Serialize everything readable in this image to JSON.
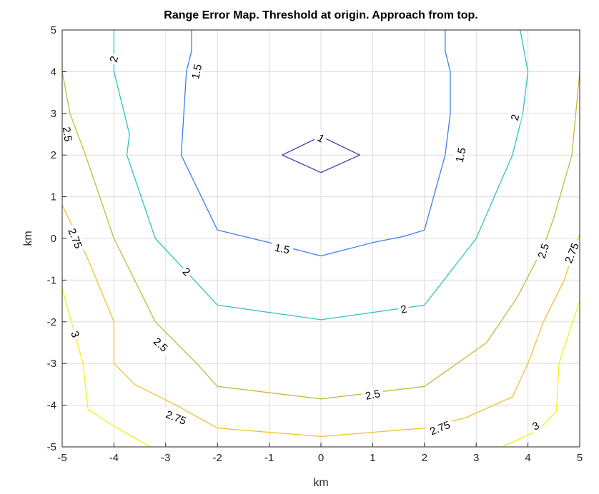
{
  "chart_data": {
    "type": "contour",
    "title": "Range Error Map. Threshold at origin. Approach from top.",
    "xlabel": "km",
    "ylabel": "km",
    "xlim": [
      -5,
      5
    ],
    "ylim": [
      -5,
      5
    ],
    "xticks": [
      "-5",
      "-4",
      "-3",
      "-2",
      "-1",
      "0",
      "1",
      "2",
      "3",
      "4",
      "5"
    ],
    "yticks": [
      "-5",
      "-4",
      "-3",
      "-2",
      "-1",
      "0",
      "1",
      "2",
      "3",
      "4",
      "5"
    ],
    "grid": true,
    "colors": {
      "1": "#4b2fb0",
      "1.5": "#3b7ff0",
      "2": "#2ec4c0",
      "2.5": "#c9b83a",
      "2.75": "#f2c032",
      "3": "#f5f01c"
    },
    "contours": [
      {
        "level": "1",
        "points": [
          [
            -0.75,
            2.0
          ],
          [
            0.0,
            2.45
          ],
          [
            0.75,
            2.0
          ],
          [
            0.0,
            1.58
          ],
          [
            -0.75,
            2.0
          ]
        ]
      },
      {
        "level": "1.5",
        "points": [
          [
            -2.5,
            5.0
          ],
          [
            -2.5,
            4.5
          ],
          [
            -2.6,
            4.0
          ],
          [
            -2.7,
            2.0
          ],
          [
            -2.0,
            0.2
          ],
          [
            -1.0,
            -0.1
          ],
          [
            0.0,
            -0.42
          ],
          [
            1.0,
            -0.1
          ],
          [
            1.6,
            0.05
          ],
          [
            2.0,
            0.2
          ],
          [
            2.4,
            2.0
          ],
          [
            2.5,
            3.0
          ],
          [
            2.5,
            4.0
          ],
          [
            2.4,
            4.5
          ],
          [
            2.4,
            5.0
          ]
        ]
      },
      {
        "level": "2",
        "points": [
          [
            -4.0,
            5.0
          ],
          [
            -4.0,
            4.0
          ],
          [
            -3.8,
            3.0
          ],
          [
            -3.7,
            2.5
          ],
          [
            -3.75,
            2.0
          ],
          [
            -3.2,
            0.0
          ],
          [
            -2.0,
            -1.6
          ],
          [
            0.0,
            -1.95
          ],
          [
            2.0,
            -1.6
          ],
          [
            3.0,
            0.0
          ],
          [
            3.7,
            2.0
          ],
          [
            3.9,
            3.0
          ],
          [
            4.0,
            4.0
          ],
          [
            3.85,
            5.0
          ]
        ]
      },
      {
        "level": "2.5",
        "points": [
          [
            -5.0,
            4.0
          ],
          [
            -4.85,
            3.0
          ],
          [
            -4.55,
            2.0
          ],
          [
            -4.0,
            0.0
          ],
          [
            -3.6,
            -1.0
          ],
          [
            -3.2,
            -2.0
          ],
          [
            -2.4,
            -3.0
          ],
          [
            -2.0,
            -3.55
          ],
          [
            0.0,
            -3.85
          ],
          [
            2.0,
            -3.55
          ],
          [
            3.2,
            -2.5
          ],
          [
            3.8,
            -1.4
          ],
          [
            4.3,
            -0.2
          ],
          [
            4.5,
            0.5
          ],
          [
            4.85,
            2.0
          ],
          [
            5.0,
            4.0
          ]
        ]
      },
      {
        "level": "2.75",
        "points": [
          [
            -5.0,
            0.8
          ],
          [
            -4.5,
            -0.5
          ],
          [
            -4.1,
            -1.7
          ],
          [
            -4.0,
            -2.0
          ],
          [
            -4.0,
            -3.0
          ],
          [
            -3.6,
            -3.5
          ],
          [
            -2.8,
            -4.0
          ],
          [
            -2.0,
            -4.55
          ],
          [
            0.0,
            -4.75
          ],
          [
            2.0,
            -4.55
          ],
          [
            2.8,
            -4.3
          ],
          [
            3.7,
            -3.8
          ],
          [
            4.0,
            -3.0
          ],
          [
            4.3,
            -2.0
          ],
          [
            4.7,
            -1.0
          ],
          [
            5.0,
            0.1
          ]
        ]
      },
      {
        "level": "3",
        "points": [
          [
            -5.0,
            -1.2
          ],
          [
            -4.6,
            -3.0
          ],
          [
            -4.5,
            -4.1
          ],
          [
            -4.0,
            -4.5
          ],
          [
            -3.3,
            -5.0
          ]
        ]
      },
      {
        "level": "3",
        "points": [
          [
            3.5,
            -5.0
          ],
          [
            4.2,
            -4.6
          ],
          [
            4.55,
            -4.15
          ],
          [
            4.6,
            -3.0
          ],
          [
            5.0,
            -1.5
          ]
        ]
      }
    ],
    "contour_labels": [
      {
        "text": "1",
        "x": 0.0,
        "y": 2.4,
        "angle": 30
      },
      {
        "text": "1.5",
        "x": -2.4,
        "y": 4.0,
        "angle": -78
      },
      {
        "text": "1.5",
        "x": -0.75,
        "y": -0.25,
        "angle": 12
      },
      {
        "text": "1.5",
        "x": 2.7,
        "y": 2.0,
        "angle": -78
      },
      {
        "text": "2",
        "x": -4.0,
        "y": 4.3,
        "angle": -75
      },
      {
        "text": "2",
        "x": -2.6,
        "y": -0.8,
        "angle": 42
      },
      {
        "text": "2",
        "x": 1.6,
        "y": -1.7,
        "angle": -12
      },
      {
        "text": "2",
        "x": 3.75,
        "y": 2.9,
        "angle": -75
      },
      {
        "text": "2.5",
        "x": -4.9,
        "y": 2.5,
        "angle": 82
      },
      {
        "text": "2.5",
        "x": -3.1,
        "y": -2.55,
        "angle": 42
      },
      {
        "text": "2.5",
        "x": 1.0,
        "y": -3.75,
        "angle": -12
      },
      {
        "text": "2.5",
        "x": 4.3,
        "y": -0.3,
        "angle": -72
      },
      {
        "text": "2.75",
        "x": -4.75,
        "y": 0.0,
        "angle": 68
      },
      {
        "text": "2.75",
        "x": -2.8,
        "y": -4.3,
        "angle": 22
      },
      {
        "text": "2.75",
        "x": 2.3,
        "y": -4.55,
        "angle": -22
      },
      {
        "text": "2.75",
        "x": 4.85,
        "y": -0.35,
        "angle": -68
      },
      {
        "text": "3",
        "x": -4.75,
        "y": -2.3,
        "angle": 70
      },
      {
        "text": "3",
        "x": 4.15,
        "y": -4.5,
        "angle": -28
      }
    ]
  }
}
